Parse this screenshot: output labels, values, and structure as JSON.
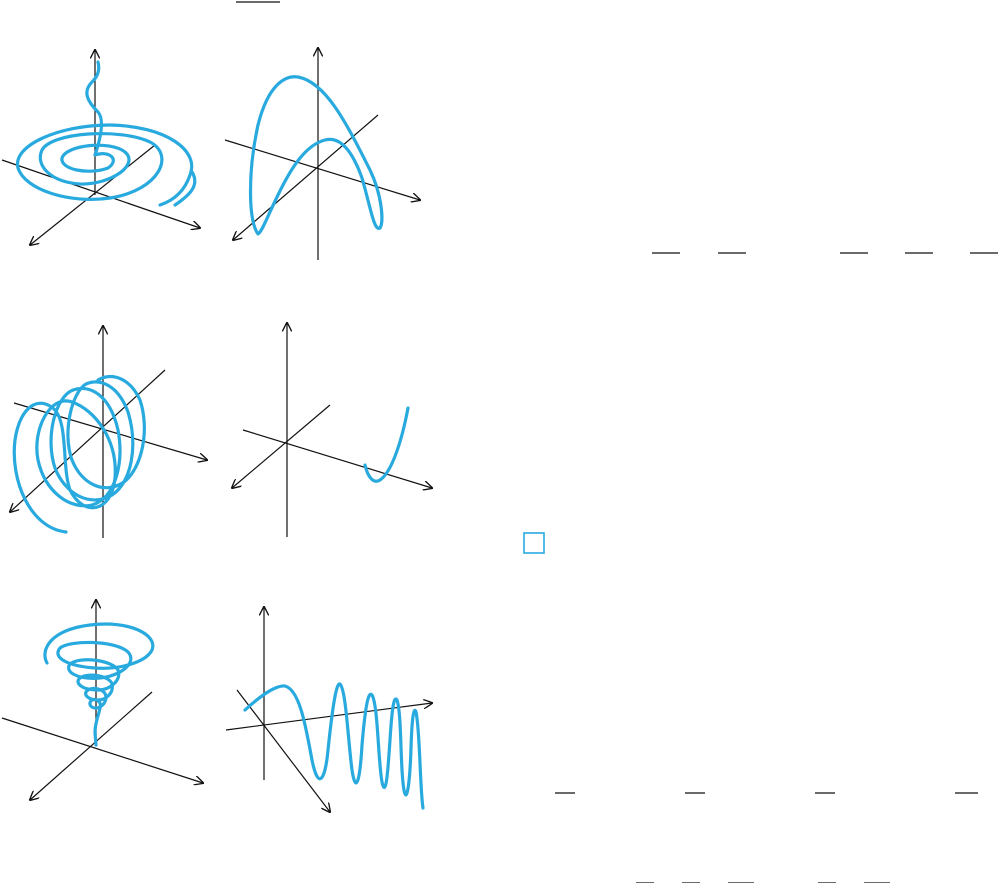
{
  "colors": {
    "curve": "#29aadf",
    "axis": "#111111",
    "box_outline": "#29aadf"
  },
  "panels": [
    {
      "id": "panel-1",
      "description_icon": "conical-spiral-flat"
    },
    {
      "id": "panel-2",
      "description_icon": "twisted-arch"
    },
    {
      "id": "panel-3",
      "description_icon": "horizontal-helix"
    },
    {
      "id": "panel-4",
      "description_icon": "parabola-segment"
    },
    {
      "id": "panel-5",
      "description_icon": "vertical-conical-spiral"
    },
    {
      "id": "panel-6",
      "description_icon": "damped-oscillation"
    }
  ]
}
